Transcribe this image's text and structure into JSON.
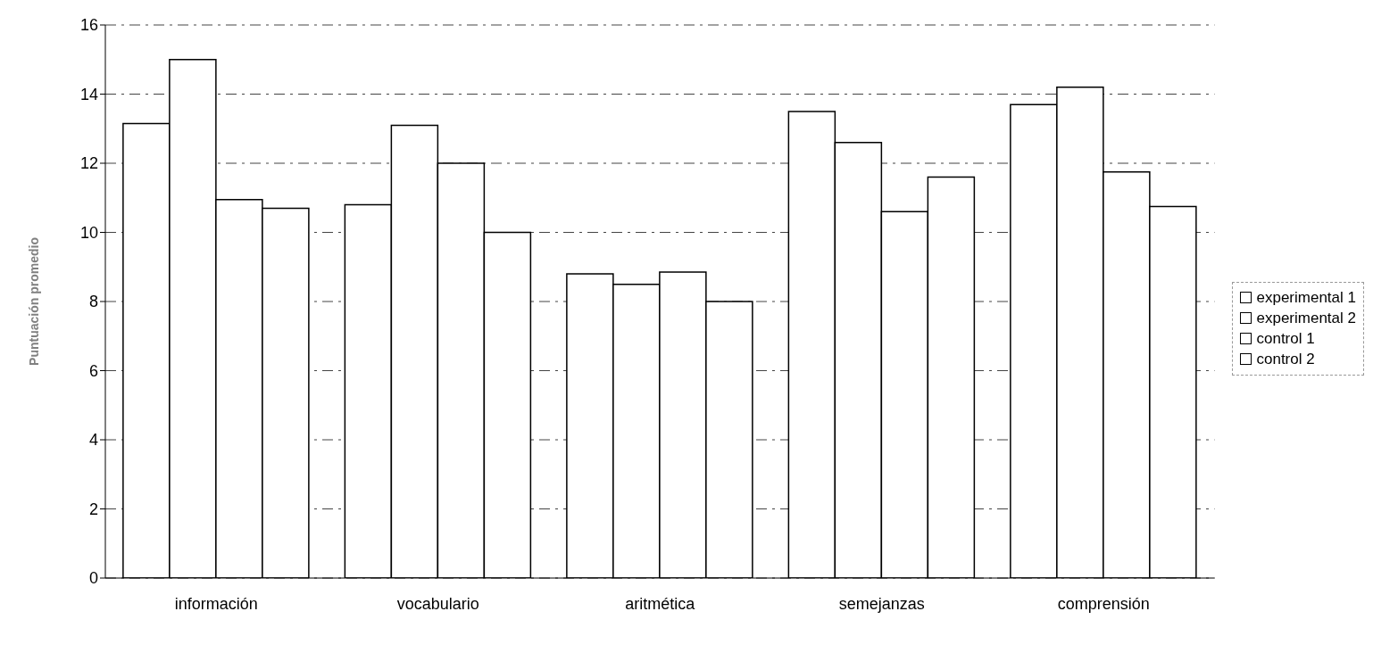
{
  "chart_data": {
    "type": "bar",
    "ylabel": "Puntuación promedio",
    "categories": [
      "información",
      "vocabulario",
      "aritmética",
      "semejanzas",
      "comprensión"
    ],
    "series": [
      {
        "name": "experimental 1",
        "color": "#ffffff",
        "values": [
          13.15,
          10.8,
          8.8,
          13.5,
          13.7
        ]
      },
      {
        "name": "experimental 2",
        "color": "#ffffff",
        "values": [
          15.0,
          13.1,
          8.5,
          12.6,
          14.2
        ]
      },
      {
        "name": "control 1",
        "color": "#ffffff",
        "values": [
          10.95,
          12.0,
          8.85,
          10.6,
          11.75
        ]
      },
      {
        "name": "control 2",
        "color": "#ffffff",
        "values": [
          10.7,
          10.0,
          8.0,
          11.6,
          10.75
        ]
      }
    ],
    "ylim": [
      0,
      16
    ],
    "yticks": [
      0,
      2,
      4,
      6,
      8,
      10,
      12,
      14,
      16
    ],
    "grid": "y",
    "legend": "right"
  }
}
